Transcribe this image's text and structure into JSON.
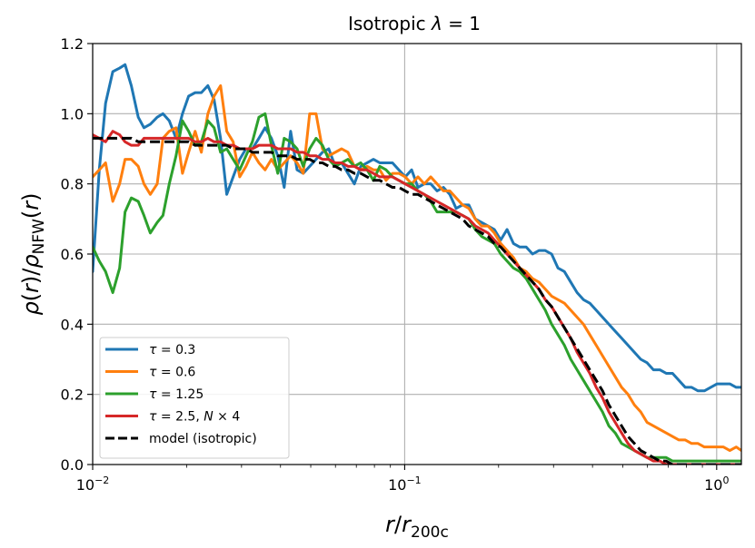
{
  "chart_data": {
    "type": "line",
    "title": "Isotropic λ = 1",
    "xlabel": "r/r200c",
    "ylabel": "ρ(r)/ρNFW(r)",
    "xscale": "log",
    "xlim": [
      0.01,
      1.2
    ],
    "ylim": [
      0,
      1.2
    ],
    "grid": true,
    "legend_position": "lower-left",
    "x_ticks": [
      {
        "value": 0.01,
        "base": "10",
        "exp": "−2"
      },
      {
        "value": 0.1,
        "base": "10",
        "exp": "−1"
      },
      {
        "value": 1,
        "base": "10",
        "exp": "0"
      }
    ],
    "y_ticks": [
      {
        "value": 0.0,
        "label": "0.0"
      },
      {
        "value": 0.2,
        "label": "0.2"
      },
      {
        "value": 0.4,
        "label": "0.4"
      },
      {
        "value": 0.6,
        "label": "0.6"
      },
      {
        "value": 0.8,
        "label": "0.8"
      },
      {
        "value": 1.0,
        "label": "1.0"
      },
      {
        "value": 1.2,
        "label": "1.2"
      }
    ],
    "series": [
      {
        "name": "τ = 0.3",
        "color": "#1f77b4",
        "dashed": false,
        "x": [
          0.01,
          0.0105,
          0.011,
          0.0116,
          0.0122,
          0.0127,
          0.0133,
          0.014,
          0.0146,
          0.0153,
          0.0161,
          0.0168,
          0.0176,
          0.0185,
          0.0194,
          0.0203,
          0.0213,
          0.0223,
          0.0234,
          0.0245,
          0.0257,
          0.0269,
          0.0282,
          0.0296,
          0.031,
          0.0325,
          0.0341,
          0.0357,
          0.0374,
          0.0392,
          0.0411,
          0.0431,
          0.0452,
          0.0473,
          0.0496,
          0.052,
          0.0545,
          0.0571,
          0.0599,
          0.0628,
          0.0658,
          0.069,
          0.0723,
          0.0758,
          0.0794,
          0.0832,
          0.0872,
          0.0914,
          0.0958,
          0.1004,
          0.1053,
          0.1103,
          0.1156,
          0.1212,
          0.127,
          0.1331,
          0.1395,
          0.1462,
          0.1533,
          0.1606,
          0.1684,
          0.1765,
          0.185,
          0.1938,
          0.2032,
          0.2129,
          0.2232,
          0.2339,
          0.2452,
          0.257,
          0.2693,
          0.2823,
          0.2958,
          0.3101,
          0.325,
          0.3406,
          0.357,
          0.3741,
          0.3921,
          0.411,
          0.4307,
          0.4514,
          0.4731,
          0.4959,
          0.5198,
          0.5448,
          0.571,
          0.5984,
          0.6272,
          0.6573,
          0.6889,
          0.722,
          0.7568,
          0.7932,
          0.8313,
          0.8713,
          0.9132,
          0.9571,
          1.0031,
          1.0514,
          1.1019,
          1.1549,
          1.2
        ],
        "y": [
          0.55,
          0.84,
          1.03,
          1.12,
          1.13,
          1.14,
          1.08,
          0.99,
          0.96,
          0.97,
          0.99,
          1.0,
          0.98,
          0.93,
          1.0,
          1.05,
          1.06,
          1.06,
          1.08,
          1.04,
          0.93,
          0.77,
          0.82,
          0.87,
          0.9,
          0.9,
          0.93,
          0.96,
          0.93,
          0.88,
          0.79,
          0.95,
          0.84,
          0.83,
          0.85,
          0.87,
          0.89,
          0.9,
          0.85,
          0.86,
          0.83,
          0.8,
          0.85,
          0.86,
          0.87,
          0.86,
          0.86,
          0.86,
          0.84,
          0.82,
          0.84,
          0.79,
          0.8,
          0.8,
          0.78,
          0.79,
          0.77,
          0.73,
          0.74,
          0.74,
          0.7,
          0.69,
          0.68,
          0.67,
          0.64,
          0.67,
          0.63,
          0.62,
          0.62,
          0.6,
          0.61,
          0.61,
          0.6,
          0.56,
          0.55,
          0.52,
          0.49,
          0.47,
          0.46,
          0.44,
          0.42,
          0.4,
          0.38,
          0.36,
          0.34,
          0.32,
          0.3,
          0.29,
          0.27,
          0.27,
          0.26,
          0.26,
          0.24,
          0.22,
          0.22,
          0.21,
          0.21,
          0.22,
          0.23,
          0.23,
          0.23,
          0.22,
          0.22
        ]
      },
      {
        "name": "τ = 0.6",
        "color": "#ff7f0e",
        "dashed": false,
        "x": [
          0.01,
          0.0105,
          0.011,
          0.0116,
          0.0122,
          0.0127,
          0.0133,
          0.014,
          0.0146,
          0.0153,
          0.0161,
          0.0168,
          0.0176,
          0.0185,
          0.0194,
          0.0203,
          0.0213,
          0.0223,
          0.0234,
          0.0245,
          0.0257,
          0.0269,
          0.0282,
          0.0296,
          0.031,
          0.0325,
          0.0341,
          0.0357,
          0.0374,
          0.0392,
          0.0411,
          0.0431,
          0.0452,
          0.0473,
          0.0496,
          0.052,
          0.0545,
          0.0571,
          0.0599,
          0.0628,
          0.0658,
          0.069,
          0.0723,
          0.0758,
          0.0794,
          0.0832,
          0.0872,
          0.0914,
          0.0958,
          0.1004,
          0.1053,
          0.1103,
          0.1156,
          0.1212,
          0.127,
          0.1331,
          0.1395,
          0.1462,
          0.1533,
          0.1606,
          0.1684,
          0.1765,
          0.185,
          0.1938,
          0.2032,
          0.2129,
          0.2232,
          0.2339,
          0.2452,
          0.257,
          0.2693,
          0.2823,
          0.2958,
          0.3101,
          0.325,
          0.3406,
          0.357,
          0.3741,
          0.3921,
          0.411,
          0.4307,
          0.4514,
          0.4731,
          0.4959,
          0.5198,
          0.5448,
          0.571,
          0.5984,
          0.6272,
          0.6573,
          0.6889,
          0.722,
          0.7568,
          0.7932,
          0.8313,
          0.8713,
          0.9132,
          0.9571,
          1.0031,
          1.0514,
          1.1019,
          1.1549,
          1.2
        ],
        "y": [
          0.82,
          0.84,
          0.86,
          0.75,
          0.8,
          0.87,
          0.87,
          0.85,
          0.8,
          0.77,
          0.8,
          0.93,
          0.95,
          0.96,
          0.83,
          0.89,
          0.95,
          0.89,
          1.0,
          1.05,
          1.08,
          0.95,
          0.92,
          0.82,
          0.85,
          0.89,
          0.86,
          0.84,
          0.87,
          0.84,
          0.86,
          0.88,
          0.86,
          0.83,
          1.0,
          1.0,
          0.9,
          0.88,
          0.89,
          0.9,
          0.89,
          0.85,
          0.84,
          0.85,
          0.84,
          0.84,
          0.81,
          0.83,
          0.83,
          0.82,
          0.8,
          0.82,
          0.8,
          0.82,
          0.8,
          0.78,
          0.78,
          0.76,
          0.74,
          0.73,
          0.7,
          0.68,
          0.68,
          0.66,
          0.63,
          0.61,
          0.59,
          0.56,
          0.55,
          0.53,
          0.52,
          0.5,
          0.48,
          0.47,
          0.46,
          0.44,
          0.42,
          0.4,
          0.37,
          0.34,
          0.31,
          0.28,
          0.25,
          0.22,
          0.2,
          0.17,
          0.15,
          0.12,
          0.11,
          0.1,
          0.09,
          0.08,
          0.07,
          0.07,
          0.06,
          0.06,
          0.05,
          0.05,
          0.05,
          0.05,
          0.04,
          0.05,
          0.04
        ]
      },
      {
        "name": "τ = 1.25",
        "color": "#2ca02c",
        "dashed": false,
        "x": [
          0.01,
          0.0105,
          0.011,
          0.0116,
          0.0122,
          0.0127,
          0.0133,
          0.014,
          0.0146,
          0.0153,
          0.0161,
          0.0168,
          0.0176,
          0.0185,
          0.0194,
          0.0203,
          0.0213,
          0.0223,
          0.0234,
          0.0245,
          0.0257,
          0.0269,
          0.0282,
          0.0296,
          0.031,
          0.0325,
          0.0341,
          0.0357,
          0.0374,
          0.0392,
          0.0411,
          0.0431,
          0.0452,
          0.0473,
          0.0496,
          0.052,
          0.0545,
          0.0571,
          0.0599,
          0.0628,
          0.0658,
          0.069,
          0.0723,
          0.0758,
          0.0794,
          0.0832,
          0.0872,
          0.0914,
          0.0958,
          0.1004,
          0.1053,
          0.1103,
          0.1156,
          0.1212,
          0.127,
          0.1331,
          0.1395,
          0.1462,
          0.1533,
          0.1606,
          0.1684,
          0.1765,
          0.185,
          0.1938,
          0.2032,
          0.2129,
          0.2232,
          0.2339,
          0.2452,
          0.257,
          0.2693,
          0.2823,
          0.2958,
          0.3101,
          0.325,
          0.3406,
          0.357,
          0.3741,
          0.3921,
          0.411,
          0.4307,
          0.4514,
          0.4731,
          0.4959,
          0.5198,
          0.5448,
          0.571,
          0.5984,
          0.6272,
          0.6573,
          0.6889,
          0.722,
          0.7568,
          0.7932,
          0.8313,
          0.8713,
          0.9132,
          0.9571,
          1.0031,
          1.0514,
          1.1019,
          1.1549,
          1.2
        ],
        "y": [
          0.62,
          0.58,
          0.55,
          0.49,
          0.56,
          0.72,
          0.76,
          0.75,
          0.71,
          0.66,
          0.69,
          0.71,
          0.8,
          0.88,
          0.98,
          0.95,
          0.91,
          0.92,
          0.98,
          0.96,
          0.89,
          0.9,
          0.87,
          0.84,
          0.88,
          0.92,
          0.99,
          1.0,
          0.91,
          0.83,
          0.93,
          0.92,
          0.9,
          0.85,
          0.9,
          0.93,
          0.91,
          0.87,
          0.85,
          0.86,
          0.87,
          0.85,
          0.86,
          0.84,
          0.81,
          0.85,
          0.84,
          0.82,
          0.81,
          0.8,
          0.8,
          0.78,
          0.77,
          0.75,
          0.72,
          0.72,
          0.72,
          0.72,
          0.71,
          0.7,
          0.67,
          0.65,
          0.64,
          0.63,
          0.6,
          0.58,
          0.56,
          0.55,
          0.53,
          0.5,
          0.47,
          0.44,
          0.4,
          0.37,
          0.34,
          0.3,
          0.27,
          0.24,
          0.21,
          0.18,
          0.15,
          0.11,
          0.09,
          0.06,
          0.05,
          0.04,
          0.03,
          0.02,
          0.02,
          0.02,
          0.02,
          0.01,
          0.01,
          0.01,
          0.01,
          0.01,
          0.01,
          0.01,
          0.01,
          0.01,
          0.01,
          0.01,
          0.01
        ]
      },
      {
        "name": "τ = 2.5, N × 4",
        "color": "#d62728",
        "dashed": false,
        "x": [
          0.01,
          0.0105,
          0.011,
          0.0116,
          0.0122,
          0.0127,
          0.0133,
          0.014,
          0.0146,
          0.0153,
          0.0161,
          0.0168,
          0.0176,
          0.0185,
          0.0194,
          0.0203,
          0.0213,
          0.0223,
          0.0234,
          0.0245,
          0.0257,
          0.0269,
          0.0282,
          0.0296,
          0.031,
          0.0325,
          0.0341,
          0.0357,
          0.0374,
          0.0392,
          0.0411,
          0.0431,
          0.0452,
          0.0473,
          0.0496,
          0.052,
          0.0545,
          0.0571,
          0.0599,
          0.0628,
          0.0658,
          0.069,
          0.0723,
          0.0758,
          0.0794,
          0.0832,
          0.0872,
          0.0914,
          0.0958,
          0.1004,
          0.1053,
          0.1103,
          0.1156,
          0.1212,
          0.127,
          0.1331,
          0.1395,
          0.1462,
          0.1533,
          0.1606,
          0.1684,
          0.1765,
          0.185,
          0.1938,
          0.2032,
          0.2129,
          0.2232,
          0.2339,
          0.2452,
          0.257,
          0.2693,
          0.2823,
          0.2958,
          0.3101,
          0.325,
          0.3406,
          0.357,
          0.3741,
          0.3921,
          0.411,
          0.4307,
          0.4514,
          0.4731,
          0.4959,
          0.5198,
          0.5448,
          0.571,
          0.5984,
          0.6272,
          0.6573,
          0.6889,
          0.722,
          0.7568,
          0.7932,
          0.8313,
          0.8713,
          0.9132,
          0.9571,
          1.0031,
          1.0514,
          1.1019,
          1.1549,
          1.2
        ],
        "y": [
          0.94,
          0.93,
          0.92,
          0.95,
          0.94,
          0.92,
          0.91,
          0.91,
          0.93,
          0.93,
          0.93,
          0.93,
          0.93,
          0.93,
          0.93,
          0.93,
          0.92,
          0.92,
          0.93,
          0.92,
          0.92,
          0.91,
          0.91,
          0.9,
          0.9,
          0.9,
          0.91,
          0.91,
          0.91,
          0.9,
          0.9,
          0.9,
          0.89,
          0.89,
          0.88,
          0.88,
          0.87,
          0.87,
          0.86,
          0.86,
          0.85,
          0.85,
          0.84,
          0.84,
          0.83,
          0.82,
          0.82,
          0.82,
          0.81,
          0.8,
          0.79,
          0.78,
          0.77,
          0.76,
          0.75,
          0.74,
          0.73,
          0.72,
          0.71,
          0.7,
          0.68,
          0.67,
          0.66,
          0.64,
          0.62,
          0.6,
          0.58,
          0.56,
          0.54,
          0.52,
          0.5,
          0.47,
          0.45,
          0.42,
          0.39,
          0.36,
          0.32,
          0.29,
          0.26,
          0.22,
          0.19,
          0.15,
          0.12,
          0.09,
          0.06,
          0.04,
          0.03,
          0.02,
          0.01,
          0.01,
          0.0,
          0.0,
          0.0,
          0.0,
          0.0,
          0.0,
          0.0,
          0.0,
          0.0,
          0.0,
          0.0,
          0.0,
          0.0
        ]
      },
      {
        "name": "model (isotropic)",
        "color": "#000000",
        "dashed": true,
        "x": [
          0.01,
          0.0105,
          0.011,
          0.0116,
          0.0122,
          0.0127,
          0.0133,
          0.014,
          0.0146,
          0.0153,
          0.0161,
          0.0168,
          0.0176,
          0.0185,
          0.0194,
          0.0203,
          0.0213,
          0.0223,
          0.0234,
          0.0245,
          0.0257,
          0.0269,
          0.0282,
          0.0296,
          0.031,
          0.0325,
          0.0341,
          0.0357,
          0.0374,
          0.0392,
          0.0411,
          0.0431,
          0.0452,
          0.0473,
          0.0496,
          0.052,
          0.0545,
          0.0571,
          0.0599,
          0.0628,
          0.0658,
          0.069,
          0.0723,
          0.0758,
          0.0794,
          0.0832,
          0.0872,
          0.0914,
          0.0958,
          0.1004,
          0.1053,
          0.1103,
          0.1156,
          0.1212,
          0.127,
          0.1331,
          0.1395,
          0.1462,
          0.1533,
          0.1606,
          0.1684,
          0.1765,
          0.185,
          0.1938,
          0.2032,
          0.2129,
          0.2232,
          0.2339,
          0.2452,
          0.257,
          0.2693,
          0.2823,
          0.2958,
          0.3101,
          0.325,
          0.3406,
          0.357,
          0.3741,
          0.3921,
          0.411,
          0.4307,
          0.4514,
          0.4731,
          0.4959,
          0.5198,
          0.5448,
          0.571,
          0.5984,
          0.6272,
          0.6573,
          0.6889,
          0.722,
          0.7568,
          0.7932,
          0.8313,
          0.8713,
          0.9132,
          0.9571,
          1.0031,
          1.0514,
          1.1019,
          1.1549,
          1.2
        ],
        "y": [
          0.93,
          0.93,
          0.93,
          0.93,
          0.93,
          0.93,
          0.93,
          0.92,
          0.92,
          0.92,
          0.92,
          0.92,
          0.92,
          0.92,
          0.92,
          0.92,
          0.91,
          0.91,
          0.91,
          0.91,
          0.91,
          0.91,
          0.9,
          0.9,
          0.9,
          0.89,
          0.89,
          0.89,
          0.89,
          0.88,
          0.88,
          0.88,
          0.87,
          0.87,
          0.87,
          0.86,
          0.86,
          0.85,
          0.85,
          0.84,
          0.84,
          0.83,
          0.83,
          0.82,
          0.81,
          0.81,
          0.8,
          0.79,
          0.79,
          0.78,
          0.77,
          0.77,
          0.76,
          0.75,
          0.74,
          0.73,
          0.72,
          0.71,
          0.7,
          0.68,
          0.67,
          0.66,
          0.65,
          0.63,
          0.62,
          0.6,
          0.58,
          0.56,
          0.54,
          0.52,
          0.5,
          0.47,
          0.45,
          0.42,
          0.39,
          0.36,
          0.33,
          0.3,
          0.27,
          0.24,
          0.21,
          0.17,
          0.14,
          0.11,
          0.08,
          0.06,
          0.04,
          0.03,
          0.02,
          0.01,
          0.01,
          0.0,
          0.0,
          0.0,
          0.0,
          0.0,
          0.0,
          0.0,
          0.0,
          0.0,
          0.0,
          0.0,
          0.0
        ]
      }
    ]
  }
}
